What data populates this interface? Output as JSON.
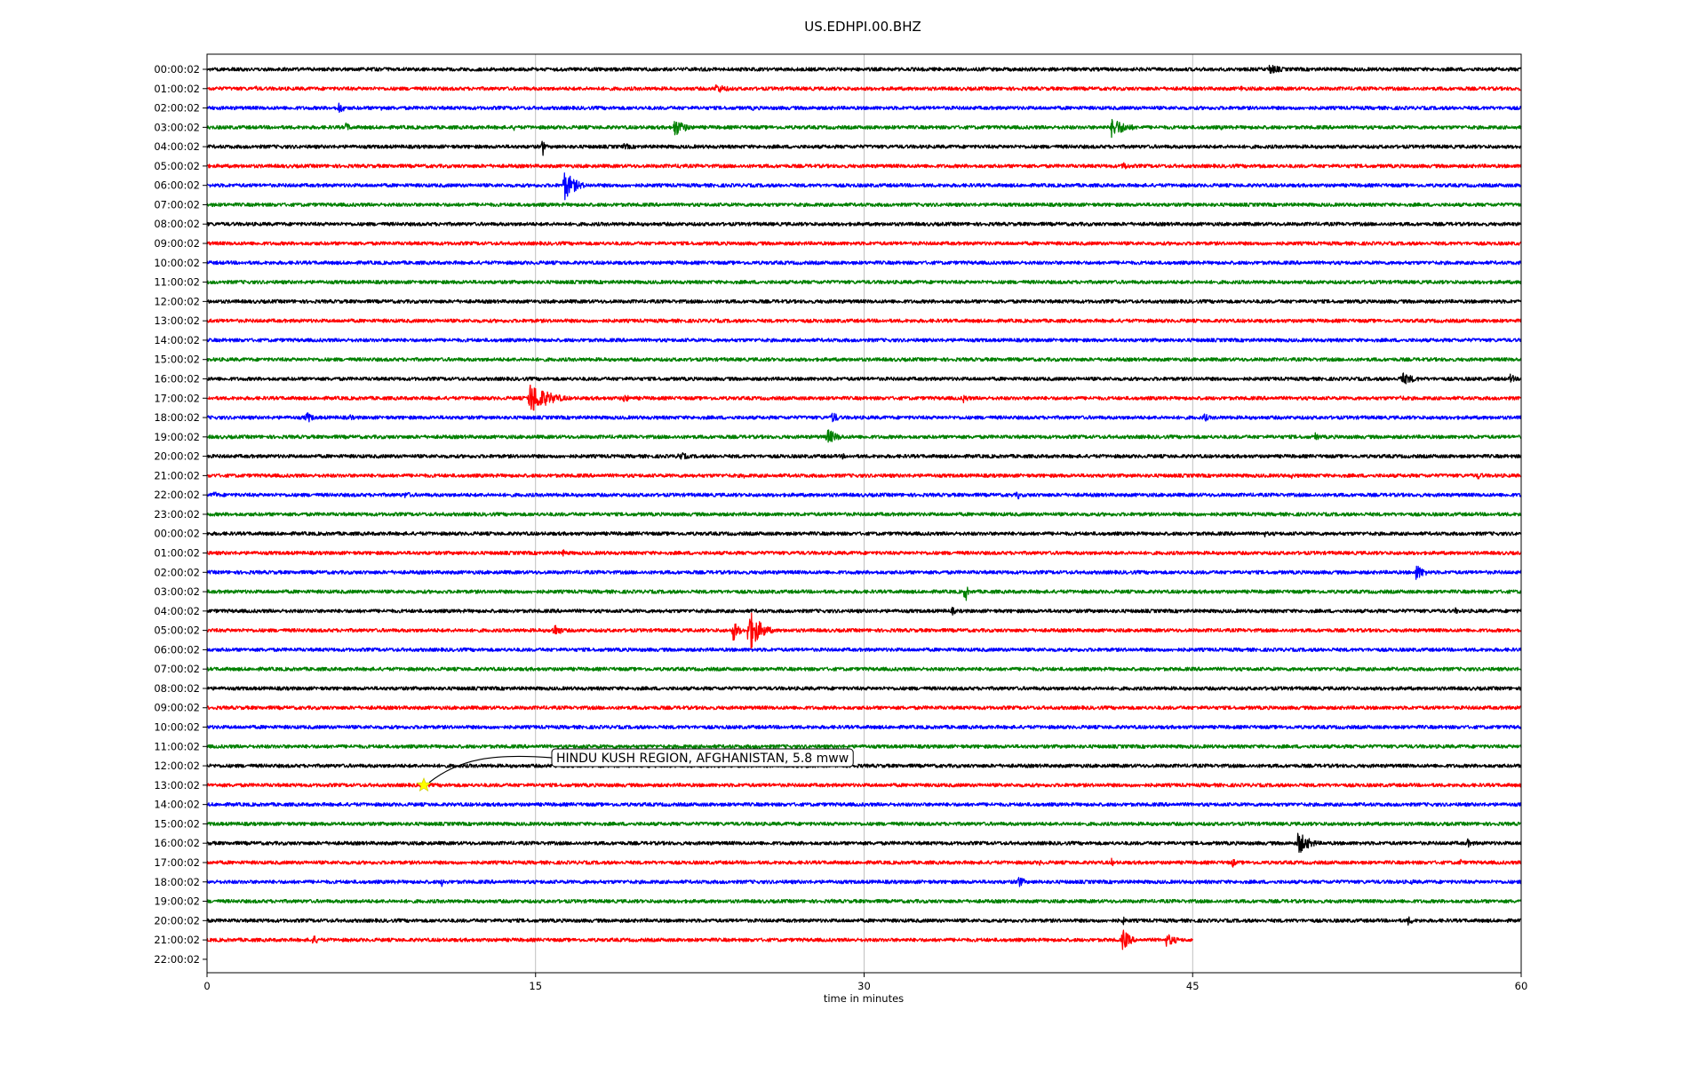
{
  "chart_data": {
    "type": "line",
    "title": "US.EDHPI.00.BHZ",
    "xlabel": "time in minutes",
    "ylabel": "",
    "xlim": [
      0,
      60
    ],
    "x_ticks": [
      "0",
      "15",
      "30",
      "45",
      "60"
    ],
    "grid": "vertical",
    "row_labels": [
      "00:00:02",
      "01:00:02",
      "02:00:02",
      "03:00:02",
      "04:00:02",
      "05:00:02",
      "06:00:02",
      "07:00:02",
      "08:00:02",
      "09:00:02",
      "10:00:02",
      "11:00:02",
      "12:00:02",
      "13:00:02",
      "14:00:02",
      "15:00:02",
      "16:00:02",
      "17:00:02",
      "18:00:02",
      "19:00:02",
      "20:00:02",
      "21:00:02",
      "22:00:02",
      "23:00:02",
      "00:00:02",
      "01:00:02",
      "02:00:02",
      "03:00:02",
      "04:00:02",
      "05:00:02",
      "06:00:02",
      "07:00:02",
      "08:00:02",
      "09:00:02",
      "10:00:02",
      "11:00:02",
      "12:00:02",
      "13:00:02",
      "14:00:02",
      "15:00:02",
      "16:00:02",
      "17:00:02",
      "18:00:02",
      "19:00:02",
      "20:00:02",
      "21:00:02",
      "22:00:02"
    ],
    "color_cycle": [
      "#000000",
      "#ff0000",
      "#0000ff",
      "#008000"
    ],
    "trace_count": 46,
    "last_trace_end_minutes": 45,
    "bursts": [
      {
        "row": 0,
        "t": 48.5,
        "amp": 6,
        "dur": 2.0
      },
      {
        "row": 1,
        "t": 23.2,
        "amp": 6,
        "dur": 2.0
      },
      {
        "row": 1,
        "t": 2.2,
        "amp": 4,
        "dur": 0.6
      },
      {
        "row": 1,
        "t": 47.2,
        "amp": 4,
        "dur": 0.6
      },
      {
        "row": 2,
        "t": 6.0,
        "amp": 8,
        "dur": 0.8
      },
      {
        "row": 2,
        "t": 7.9,
        "amp": 5,
        "dur": 0.6
      },
      {
        "row": 2,
        "t": 24.9,
        "amp": 4,
        "dur": 0.4
      },
      {
        "row": 3,
        "t": 21.3,
        "amp": 12,
        "dur": 1.5
      },
      {
        "row": 3,
        "t": 41.3,
        "amp": 12,
        "dur": 2.0
      },
      {
        "row": 3,
        "t": 6.3,
        "amp": 6,
        "dur": 1.0
      },
      {
        "row": 3,
        "t": 14.0,
        "amp": 4,
        "dur": 0.6
      },
      {
        "row": 3,
        "t": 46.3,
        "amp": 3,
        "dur": 0.5
      },
      {
        "row": 4,
        "t": 15.3,
        "amp": 20,
        "dur": 0.2
      },
      {
        "row": 4,
        "t": 19.0,
        "amp": 4,
        "dur": 2.0
      },
      {
        "row": 5,
        "t": 21.5,
        "amp": 4,
        "dur": 1.0
      },
      {
        "row": 5,
        "t": 41.8,
        "amp": 6,
        "dur": 1.0
      },
      {
        "row": 5,
        "t": 48.0,
        "amp": 4,
        "dur": 0.6
      },
      {
        "row": 6,
        "t": 16.3,
        "amp": 18,
        "dur": 1.5
      },
      {
        "row": 16,
        "t": 54.5,
        "amp": 8,
        "dur": 2.0
      },
      {
        "row": 16,
        "t": 59.5,
        "amp": 6,
        "dur": 0.8
      },
      {
        "row": 17,
        "t": 14.7,
        "amp": 20,
        "dur": 2.5
      },
      {
        "row": 17,
        "t": 19.0,
        "amp": 6,
        "dur": 1.0
      },
      {
        "row": 17,
        "t": 34.5,
        "amp": 6,
        "dur": 1.0
      },
      {
        "row": 17,
        "t": 54.5,
        "amp": 4,
        "dur": 1.0
      },
      {
        "row": 18,
        "t": 4.5,
        "amp": 8,
        "dur": 1.0
      },
      {
        "row": 18,
        "t": 6.5,
        "amp": 5,
        "dur": 0.6
      },
      {
        "row": 18,
        "t": 28.5,
        "amp": 8,
        "dur": 1.0
      },
      {
        "row": 18,
        "t": 45.5,
        "amp": 6,
        "dur": 0.8
      },
      {
        "row": 19,
        "t": 28.3,
        "amp": 10,
        "dur": 1.5
      },
      {
        "row": 19,
        "t": 50.6,
        "amp": 5,
        "dur": 0.8
      },
      {
        "row": 20,
        "t": 21.5,
        "amp": 6,
        "dur": 1.5
      },
      {
        "row": 20,
        "t": 29.0,
        "amp": 4,
        "dur": 0.6
      },
      {
        "row": 21,
        "t": 24.5,
        "amp": 4,
        "dur": 0.4
      },
      {
        "row": 21,
        "t": 49.5,
        "amp": 4,
        "dur": 0.5
      },
      {
        "row": 21,
        "t": 58.0,
        "amp": 5,
        "dur": 1.0
      },
      {
        "row": 22,
        "t": 0.3,
        "amp": 6,
        "dur": 0.6
      },
      {
        "row": 22,
        "t": 9.0,
        "amp": 4,
        "dur": 2.0
      },
      {
        "row": 22,
        "t": 37.0,
        "amp": 8,
        "dur": 0.3
      },
      {
        "row": 24,
        "t": 48.3,
        "amp": 4,
        "dur": 0.6
      },
      {
        "row": 24,
        "t": 36.2,
        "amp": 3,
        "dur": 0.4
      },
      {
        "row": 25,
        "t": 16.2,
        "amp": 5,
        "dur": 0.8
      },
      {
        "row": 26,
        "t": 55.2,
        "amp": 10,
        "dur": 1.2
      },
      {
        "row": 27,
        "t": 34.6,
        "amp": 18,
        "dur": 0.3
      },
      {
        "row": 28,
        "t": 34.0,
        "amp": 6,
        "dur": 0.6
      },
      {
        "row": 28,
        "t": 57.0,
        "amp": 4,
        "dur": 0.8
      },
      {
        "row": 29,
        "t": 24.7,
        "amp": 28,
        "dur": 1.5
      },
      {
        "row": 29,
        "t": 24.0,
        "amp": 14,
        "dur": 0.8
      },
      {
        "row": 29,
        "t": 15.8,
        "amp": 10,
        "dur": 1.0
      },
      {
        "row": 29,
        "t": 10.5,
        "amp": 3,
        "dur": 0.4
      },
      {
        "row": 40,
        "t": 49.8,
        "amp": 14,
        "dur": 1.6
      },
      {
        "row": 40,
        "t": 57.5,
        "amp": 6,
        "dur": 1.0
      },
      {
        "row": 41,
        "t": 38.0,
        "amp": 4,
        "dur": 0.5
      },
      {
        "row": 41,
        "t": 41.3,
        "amp": 5,
        "dur": 0.5
      },
      {
        "row": 41,
        "t": 46.8,
        "amp": 7,
        "dur": 0.5
      },
      {
        "row": 41,
        "t": 57.2,
        "amp": 6,
        "dur": 0.4
      },
      {
        "row": 42,
        "t": 10.7,
        "amp": 6,
        "dur": 0.6
      },
      {
        "row": 42,
        "t": 37.0,
        "amp": 8,
        "dur": 1.0
      },
      {
        "row": 42,
        "t": 17.2,
        "amp": 4,
        "dur": 0.6
      },
      {
        "row": 42,
        "t": 55.0,
        "amp": 4,
        "dur": 0.5
      },
      {
        "row": 43,
        "t": 28.5,
        "amp": 3,
        "dur": 0.5
      },
      {
        "row": 43,
        "t": 57.8,
        "amp": 3,
        "dur": 0.5
      },
      {
        "row": 44,
        "t": 41.8,
        "amp": 6,
        "dur": 0.5
      },
      {
        "row": 44,
        "t": 49.5,
        "amp": 4,
        "dur": 0.4
      },
      {
        "row": 44,
        "t": 54.8,
        "amp": 6,
        "dur": 1.0
      },
      {
        "row": 45,
        "t": 4.8,
        "amp": 6,
        "dur": 1.2
      },
      {
        "row": 45,
        "t": 41.8,
        "amp": 14,
        "dur": 1.0
      },
      {
        "row": 45,
        "t": 43.8,
        "amp": 8,
        "dur": 1.5
      }
    ],
    "event": {
      "label": "HINDU KUSH REGION, AFGHANISTAN, 5.8 mww",
      "row": 37,
      "t": 9.9,
      "marker": "star",
      "marker_color": "#ffff00"
    }
  }
}
